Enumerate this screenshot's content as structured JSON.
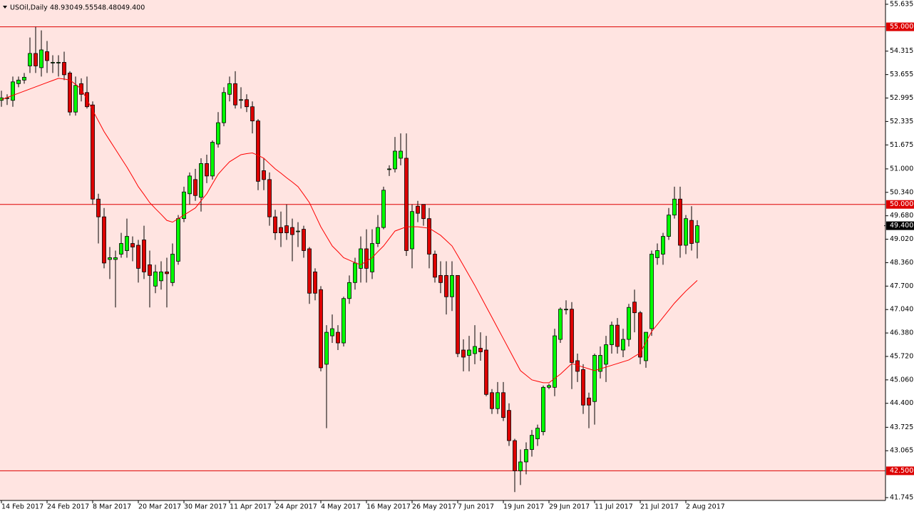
{
  "chart_data": {
    "type": "candlestick",
    "title": "USOil,Daily",
    "ohlc_labels": [
      "48.930",
      "49.555",
      "48.480",
      "49.400"
    ],
    "categories": [
      "14 Feb 2017",
      null,
      null,
      null,
      null,
      null,
      null,
      null,
      "24 Feb 2017",
      null,
      null,
      null,
      null,
      null,
      null,
      null,
      "8 Mar 2017",
      null,
      null,
      null,
      null,
      null,
      null,
      null,
      "20 Mar 2017",
      null,
      null,
      null,
      null,
      null,
      null,
      null,
      "30 Mar 2017",
      null,
      null,
      null,
      null,
      null,
      null,
      null,
      "11 Apr 2017",
      null,
      null,
      null,
      null,
      null,
      null,
      null,
      "24 Apr 2017",
      null,
      null,
      null,
      null,
      null,
      null,
      null,
      "4 May 2017",
      null,
      null,
      null,
      null,
      null,
      null,
      null,
      "16 May 2017",
      null,
      null,
      null,
      null,
      null,
      null,
      null,
      "26 May 2017",
      null,
      null,
      null,
      null,
      null,
      null,
      null,
      "7 Jun 2017",
      null,
      null,
      null,
      null,
      null,
      null,
      null,
      "19 Jun 2017",
      null,
      null,
      null,
      null,
      null,
      null,
      null,
      "29 Jun 2017",
      null,
      null,
      null,
      null,
      null,
      null,
      null,
      "11 Jul 2017",
      null,
      null,
      null,
      null,
      null,
      null,
      null,
      "21 Jul 2017",
      null,
      null,
      null,
      null,
      null,
      null,
      null,
      "2 Aug 2017",
      null,
      null
    ],
    "open": [
      52.93,
      52.98,
      52.93,
      53.4,
      53.5,
      53.9,
      54.25,
      53.85,
      54.3,
      54.0,
      54.0,
      54.0,
      53.7,
      52.6,
      53.4,
      53.15,
      52.8,
      50.15,
      49.65,
      48.45,
      48.45,
      48.6,
      48.7,
      48.9,
      48.85,
      49.0,
      48.3,
      47.7,
      47.85,
      48.1,
      47.8,
      48.4,
      49.6,
      50.3,
      50.7,
      50.2,
      51.15,
      50.8,
      51.7,
      52.3,
      53.1,
      53.4,
      52.95,
      52.95,
      52.75,
      52.35,
      50.95,
      50.7,
      49.65,
      49.35,
      49.4,
      49.35,
      49.25,
      49.3,
      48.75,
      48.1,
      47.6,
      45.5,
      46.3,
      46.4,
      46.1,
      47.35,
      47.8,
      48.2,
      48.75,
      48.1,
      48.9,
      49.35,
      51.0,
      51.0,
      51.3,
      51.3,
      48.75,
      49.95,
      50.0,
      49.6,
      48.6,
      48.0,
      48.0,
      47.4,
      48.0,
      45.9,
      45.75,
      45.8,
      45.95,
      45.9,
      44.7,
      44.25,
      44.7,
      44.2,
      43.35,
      42.5,
      42.75,
      43.1,
      43.4,
      43.6,
      44.85,
      44.85,
      46.2,
      47.05,
      47.05,
      45.6,
      45.35,
      44.55,
      44.45,
      45.3,
      45.5,
      46.05,
      46.6,
      45.9,
      46.2,
      47.25,
      46.95,
      45.6,
      46.5,
      48.5,
      48.6,
      49.1,
      49.7,
      50.15,
      48.85,
      49.55,
      48.93
    ],
    "high": [
      53.2,
      53.1,
      53.6,
      53.6,
      53.7,
      54.7,
      55.0,
      54.9,
      54.6,
      54.2,
      54.2,
      54.3,
      53.75,
      53.6,
      53.55,
      53.6,
      52.9,
      50.3,
      49.9,
      48.8,
      48.7,
      49.2,
      49.6,
      49.1,
      49.0,
      49.4,
      48.7,
      48.3,
      48.4,
      48.5,
      48.9,
      49.7,
      50.5,
      50.9,
      51.0,
      51.3,
      51.4,
      51.8,
      52.6,
      53.3,
      53.6,
      53.75,
      53.3,
      53.1,
      52.9,
      52.4,
      51.3,
      50.9,
      49.85,
      49.8,
      50.0,
      49.6,
      49.5,
      49.4,
      48.8,
      48.2,
      47.7,
      46.6,
      46.9,
      46.6,
      47.4,
      48.0,
      48.5,
      49.1,
      49.3,
      49.3,
      49.7,
      50.5,
      51.1,
      51.9,
      52.0,
      52.0,
      50.0,
      50.1,
      50.0,
      49.9,
      48.7,
      48.4,
      48.4,
      48.4,
      48.0,
      46.2,
      46.3,
      46.6,
      46.4,
      46.3,
      44.8,
      45.0,
      45.0,
      44.4,
      43.4,
      43.1,
      43.3,
      43.65,
      43.8,
      44.9,
      44.95,
      46.5,
      47.1,
      47.3,
      47.25,
      45.8,
      45.5,
      44.7,
      45.8,
      46.0,
      46.3,
      46.7,
      46.8,
      46.5,
      47.2,
      47.6,
      47.0,
      46.4,
      48.7,
      48.9,
      49.2,
      49.9,
      50.5,
      50.5,
      49.7,
      49.95,
      49.555
    ],
    "low": [
      52.75,
      52.8,
      52.75,
      53.3,
      53.4,
      53.7,
      53.7,
      53.6,
      53.7,
      53.7,
      53.6,
      53.5,
      52.5,
      52.5,
      52.9,
      52.7,
      50.0,
      48.9,
      48.2,
      47.9,
      47.1,
      48.5,
      48.5,
      48.4,
      47.8,
      47.9,
      47.1,
      47.5,
      47.6,
      47.1,
      47.7,
      48.3,
      49.5,
      50.0,
      50.1,
      49.8,
      50.6,
      50.7,
      51.6,
      52.2,
      52.9,
      52.7,
      52.7,
      52.6,
      52.0,
      50.4,
      50.4,
      49.4,
      49.0,
      48.8,
      49.0,
      48.4,
      48.8,
      48.5,
      47.2,
      47.3,
      45.3,
      43.7,
      46.1,
      45.9,
      46.0,
      47.2,
      47.6,
      47.8,
      47.8,
      47.9,
      48.8,
      49.3,
      50.8,
      50.9,
      51.1,
      48.55,
      48.2,
      49.5,
      49.4,
      48.2,
      47.8,
      47.5,
      46.9,
      47.0,
      45.7,
      45.3,
      45.3,
      45.5,
      45.6,
      44.6,
      44.1,
      44.1,
      43.9,
      43.2,
      41.9,
      42.1,
      42.4,
      42.9,
      43.2,
      43.5,
      44.8,
      44.6,
      46.1,
      46.9,
      44.8,
      45.0,
      44.1,
      43.7,
      43.8,
      45.1,
      45.0,
      45.8,
      45.8,
      45.7,
      46.0,
      46.4,
      45.5,
      45.4,
      46.3,
      48.3,
      48.3,
      49.0,
      49.6,
      48.5,
      48.6,
      48.7,
      48.48
    ],
    "close": [
      53.0,
      53.0,
      53.45,
      53.5,
      53.58,
      54.25,
      53.9,
      54.35,
      54.05,
      54.0,
      54.0,
      53.65,
      52.6,
      53.35,
      53.1,
      52.75,
      50.15,
      49.65,
      48.35,
      48.5,
      48.5,
      48.9,
      49.1,
      48.8,
      48.2,
      48.1,
      48.0,
      48.1,
      48.1,
      48.05,
      48.6,
      49.6,
      50.35,
      50.8,
      50.25,
      51.15,
      50.8,
      51.75,
      52.3,
      53.15,
      53.4,
      52.8,
      52.95,
      52.75,
      52.35,
      50.65,
      50.7,
      49.65,
      49.2,
      49.2,
      49.2,
      49.15,
      49.25,
      48.7,
      47.5,
      47.5,
      45.4,
      46.4,
      46.5,
      46.1,
      47.35,
      47.8,
      48.35,
      48.75,
      48.2,
      48.9,
      49.35,
      50.4,
      51.0,
      51.5,
      51.5,
      48.7,
      49.8,
      49.75,
      49.6,
      48.6,
      47.95,
      47.8,
      47.4,
      48.0,
      45.8,
      45.7,
      45.9,
      46.0,
      45.85,
      44.65,
      44.25,
      44.7,
      44.0,
      43.35,
      42.5,
      42.75,
      43.1,
      43.5,
      43.7,
      44.85,
      44.9,
      46.3,
      47.05,
      47.05,
      45.55,
      45.3,
      44.35,
      44.35,
      45.75,
      45.75,
      46.05,
      46.6,
      46.0,
      46.2,
      47.1,
      46.95,
      45.7,
      46.4,
      48.6,
      48.7,
      49.1,
      49.7,
      50.15,
      48.85,
      49.6,
      48.9,
      49.4
    ],
    "up_color": "#00ff00",
    "down_color": "#dd0000",
    "ma": {
      "color": "#ff0000",
      "values": [
        52.95,
        53.01,
        53.07,
        53.13,
        53.19,
        53.25,
        53.31,
        53.37,
        53.43,
        53.49,
        53.55,
        53.53,
        53.5,
        53.38,
        53.25,
        52.95,
        52.65,
        52.35,
        52.05,
        51.8,
        51.55,
        51.3,
        51.05,
        50.78,
        50.5,
        50.28,
        50.05,
        49.88,
        49.72,
        49.55,
        49.5,
        49.6,
        49.7,
        49.8,
        49.9,
        50.1,
        50.3,
        50.58,
        50.85,
        51.03,
        51.2,
        51.3,
        51.4,
        51.43,
        51.45,
        51.38,
        51.3,
        51.15,
        51.0,
        50.88,
        50.75,
        50.63,
        50.5,
        50.28,
        50.05,
        49.71,
        49.37,
        49.1,
        48.83,
        48.67,
        48.5,
        48.43,
        48.36,
        48.3,
        48.4,
        48.5,
        48.67,
        48.83,
        49.04,
        49.25,
        49.31,
        49.37,
        49.37,
        49.37,
        49.35,
        49.33,
        49.23,
        49.13,
        48.98,
        48.83,
        48.56,
        48.28,
        48.0,
        47.72,
        47.42,
        47.12,
        46.82,
        46.52,
        46.22,
        45.92,
        45.62,
        45.32,
        45.19,
        45.06,
        45.02,
        44.98,
        44.98,
        45.1,
        45.22,
        45.37,
        45.52,
        45.47,
        45.42,
        45.37,
        45.32,
        45.37,
        45.42,
        45.47,
        45.52,
        45.57,
        45.62,
        45.72,
        45.82,
        46.12,
        46.42,
        46.62,
        46.82,
        47.02,
        47.22,
        47.39,
        47.56,
        47.71,
        47.86
      ]
    },
    "levels": [
      {
        "value": 55,
        "label": "55.000"
      },
      {
        "value": 50,
        "label": "50.000"
      },
      {
        "value": 42.5,
        "label": "42.500"
      }
    ],
    "level_color": "#dd0000",
    "last": {
      "value": 49.4,
      "label": "49.400"
    },
    "plot_background": "#ffe4e1",
    "ylim": [
      41.665,
      55.755
    ],
    "yticks": [
      55.635,
      54.315,
      53.655,
      52.995,
      52.335,
      51.675,
      {
        "value": 51,
        "label": "51.000"
      },
      {
        "value": 50.34,
        "label": "50.340"
      },
      {
        "value": 49.68,
        "label": "49.680"
      },
      {
        "value": 49.02,
        "label": "49.020"
      },
      {
        "value": 48.36,
        "label": "48.360"
      },
      {
        "value": 47.7,
        "label": "47.700"
      },
      {
        "value": 47.04,
        "label": "47.040"
      },
      {
        "value": 46.38,
        "label": "46.380"
      },
      {
        "value": 45.72,
        "label": "45.720"
      },
      {
        "value": 45.06,
        "label": "45.060"
      },
      {
        "value": 44.4,
        "label": "44.400"
      },
      43.725,
      43.065,
      41.745
    ],
    "grid": false
  }
}
